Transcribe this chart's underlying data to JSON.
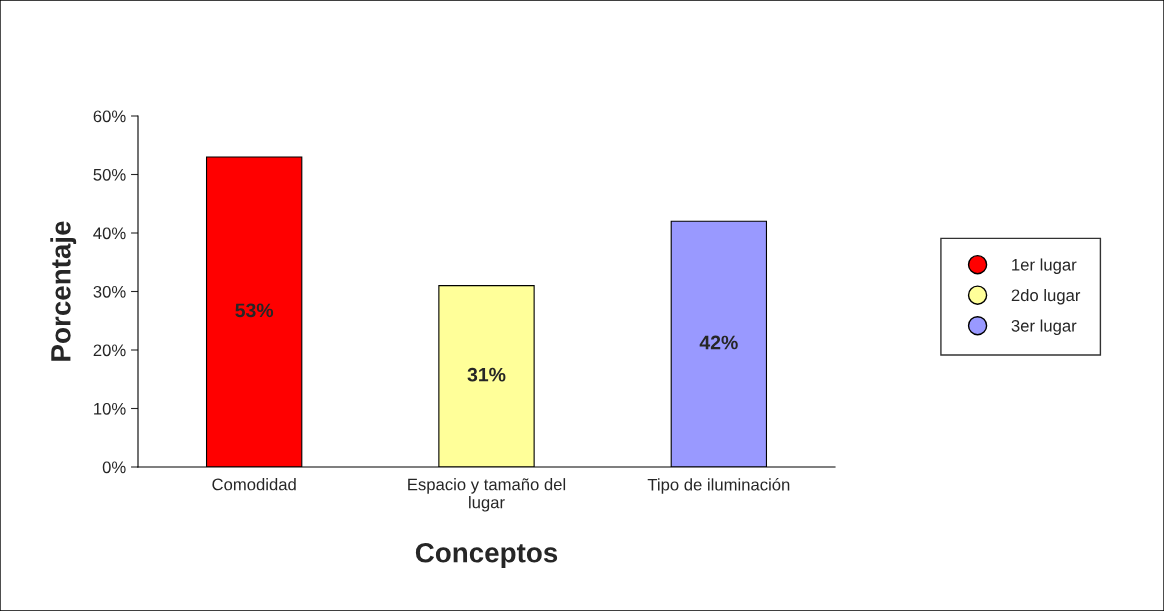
{
  "chart_data": {
    "type": "bar",
    "xlabel": "Conceptos",
    "ylabel": "Porcentaje",
    "categories": [
      "Comodidad",
      "Espacio y tamaño del lugar",
      "Tipo de iluminación"
    ],
    "series": [
      {
        "name": "1er lugar",
        "color": "#ff0000",
        "values": [
          53,
          null,
          null
        ],
        "value_labels": [
          "53%",
          null,
          null
        ]
      },
      {
        "name": "2do lugar",
        "color": "#ffff99",
        "values": [
          null,
          31,
          null
        ],
        "value_labels": [
          null,
          "31%",
          null
        ]
      },
      {
        "name": "3er lugar",
        "color": "#9999ff",
        "values": [
          null,
          null,
          42
        ],
        "value_labels": [
          null,
          null,
          "42%"
        ]
      }
    ],
    "ylim": [
      0,
      60
    ],
    "yticks": [
      {
        "value": 0,
        "label": "0%"
      },
      {
        "value": 10,
        "label": "10%"
      },
      {
        "value": 20,
        "label": "20%"
      },
      {
        "value": 30,
        "label": "30%"
      },
      {
        "value": 40,
        "label": "40%"
      },
      {
        "value": 50,
        "label": "50%"
      },
      {
        "value": 60,
        "label": "60%"
      }
    ],
    "legend": "right",
    "grid": false,
    "marker": "circle"
  }
}
